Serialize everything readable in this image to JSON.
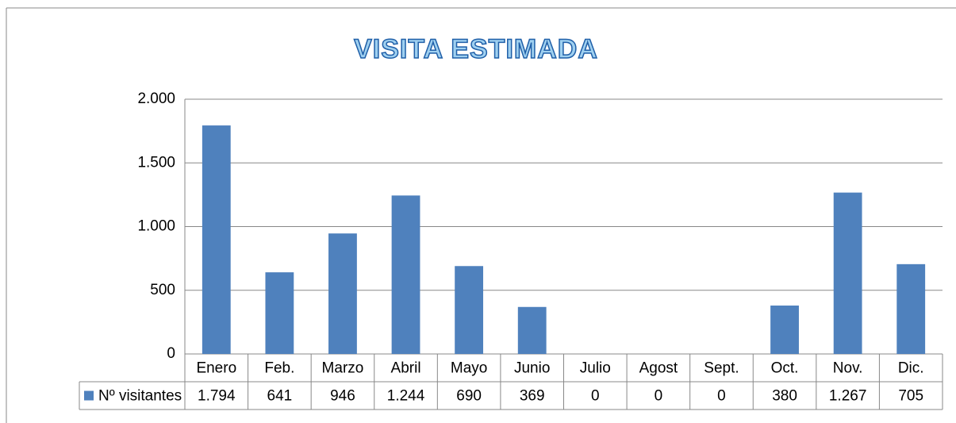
{
  "chart_data": {
    "type": "bar",
    "title": "VISITA ESTIMADA",
    "categories": [
      "Enero",
      "Feb.",
      "Marzo",
      "Abril",
      "Mayo",
      "Junio",
      "Julio",
      "Agost",
      "Sept.",
      "Oct.",
      "Nov.",
      "Dic."
    ],
    "series": [
      {
        "name": "Nº visitantes",
        "color": "#4f81bd",
        "values": [
          1794,
          641,
          946,
          1244,
          690,
          369,
          0,
          0,
          0,
          380,
          1267,
          705
        ],
        "value_labels": [
          "1.794",
          "641",
          "946",
          "1.244",
          "690",
          "369",
          "0",
          "0",
          "0",
          "380",
          "1.267",
          "705"
        ]
      }
    ],
    "ylim": [
      0,
      2000
    ],
    "yticks": [
      0,
      500,
      {
        "value": 1000,
        "label": "1.000"
      },
      {
        "value": 1500,
        "label": "1.500"
      },
      {
        "value": 2000,
        "label": "2.000"
      }
    ],
    "grid": true,
    "data_table": true
  }
}
